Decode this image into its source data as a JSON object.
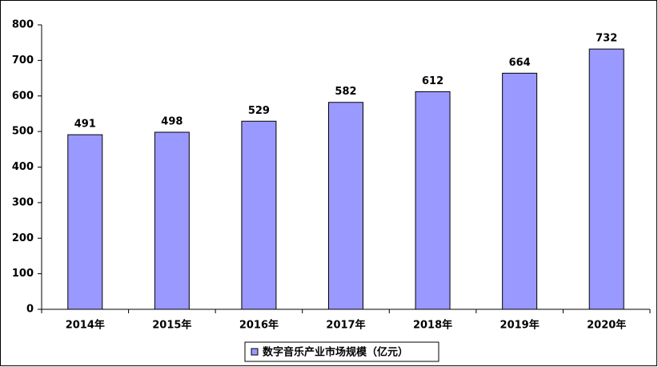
{
  "chart_data": {
    "type": "bar",
    "categories": [
      "2014年",
      "2015年",
      "2016年",
      "2017年",
      "2018年",
      "2019年",
      "2020年"
    ],
    "series": [
      {
        "name": "数字音乐产业市场规模（亿元）",
        "color": "#9999ff",
        "values": [
          491,
          498,
          529,
          582,
          612,
          664,
          732
        ]
      }
    ],
    "ylim": [
      0,
      800
    ],
    "yticks": [
      0,
      100,
      200,
      300,
      400,
      500,
      600,
      700,
      800
    ],
    "grid": false,
    "legend": "bottom"
  }
}
